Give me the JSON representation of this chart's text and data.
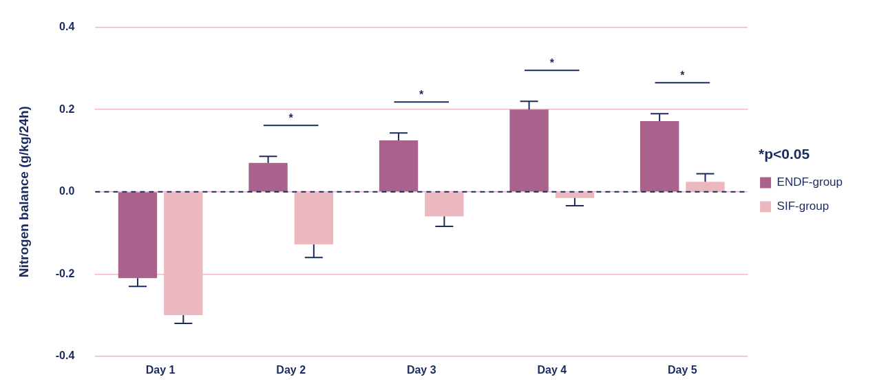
{
  "chart_data": {
    "type": "bar",
    "ylabel": "Nitrogen balance (g/kg/24h)",
    "categories": [
      "Day 1",
      "Day 2",
      "Day 3",
      "Day 4",
      "Day 5"
    ],
    "series": [
      {
        "name": "ENDF-group",
        "color": "#a8628c",
        "values": [
          -0.21,
          0.07,
          0.125,
          0.2,
          0.172
        ],
        "errors": [
          [
            -0.23,
            -0.21
          ],
          [
            0.07,
            0.086
          ],
          [
            0.125,
            0.143
          ],
          [
            0.2,
            0.22
          ],
          [
            0.172,
            0.19
          ]
        ]
      },
      {
        "name": "SIF-group",
        "color": "#ecb8c0",
        "values": [
          -0.3,
          -0.128,
          -0.06,
          -0.015,
          0.024
        ],
        "errors": [
          [
            -0.32,
            -0.3
          ],
          [
            -0.16,
            -0.128
          ],
          [
            -0.084,
            -0.06
          ],
          [
            -0.034,
            -0.015
          ],
          [
            0.024,
            0.044
          ]
        ]
      }
    ],
    "ylim": [
      -0.4,
      0.4
    ],
    "yticks": [
      {
        "value": -0.4,
        "label": "-0.4"
      },
      -0.2,
      {
        "value": 0,
        "label": "0.0"
      },
      0.2,
      0.4
    ],
    "grid": "y",
    "legend": "right",
    "ref_lines": [
      {
        "axis": "y",
        "value": 0,
        "color": "#1a2a5e",
        "line_style": "dashed"
      }
    ],
    "annotations": [
      "*",
      "*",
      "*",
      "*",
      "*p<0.05"
    ]
  }
}
